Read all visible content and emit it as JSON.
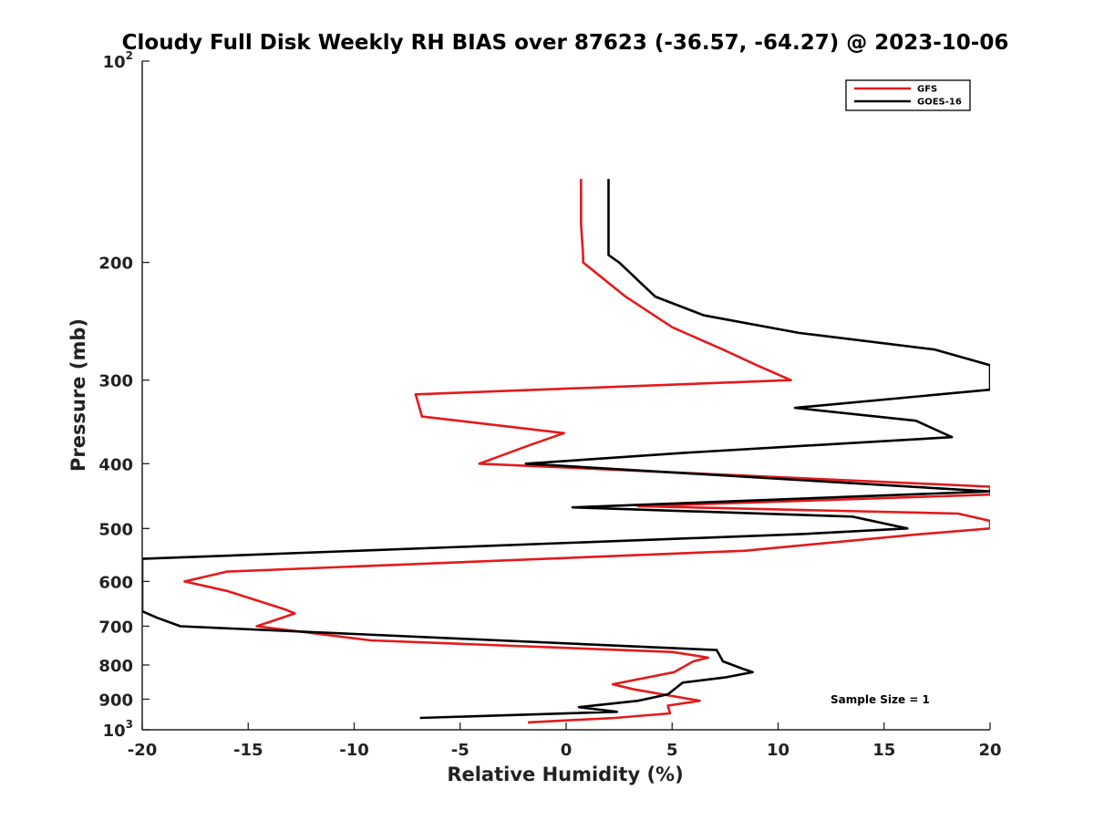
{
  "chart_data": {
    "type": "line",
    "title": "Cloudy Full Disk Weekly RH BIAS over 87623 (-36.57, -64.27) @ 2023-10-06",
    "xlabel": "Relative Humidity (%)",
    "ylabel": "Pressure (mb)",
    "xlim": [
      -20,
      20
    ],
    "ylim": [
      100,
      1000
    ],
    "y_scale": "log",
    "y_reversed": true,
    "x_ticks": [
      -20,
      -15,
      -10,
      -5,
      0,
      5,
      10,
      15,
      20
    ],
    "x_tick_labels": [
      "-20",
      "-15",
      "-10",
      "-5",
      "0",
      "5",
      "10",
      "15",
      "20"
    ],
    "y_ticks": [
      {
        "value": 100,
        "label": "10",
        "sup": "2"
      },
      {
        "value": 200,
        "label": "200",
        "sup": ""
      },
      {
        "value": 300,
        "label": "300",
        "sup": ""
      },
      {
        "value": 400,
        "label": "400",
        "sup": ""
      },
      {
        "value": 500,
        "label": "500",
        "sup": ""
      },
      {
        "value": 600,
        "label": "600",
        "sup": ""
      },
      {
        "value": 700,
        "label": "700",
        "sup": ""
      },
      {
        "value": 800,
        "label": "800",
        "sup": ""
      },
      {
        "value": 900,
        "label": "900",
        "sup": ""
      },
      {
        "value": 1000,
        "label": "10",
        "sup": "3"
      }
    ],
    "grid": false,
    "legend_position": "top-right",
    "annotation": "Sample Size = 1",
    "series": [
      {
        "name": "GFS",
        "color": "#e31a1c",
        "points": [
          [
            0.7,
            150
          ],
          [
            0.7,
            175
          ],
          [
            0.8,
            195
          ],
          [
            0.8,
            200
          ],
          [
            2.8,
            225
          ],
          [
            5.0,
            250
          ],
          [
            7.4,
            270
          ],
          [
            9.0,
            285
          ],
          [
            10.6,
            300
          ],
          [
            -7.1,
            315
          ],
          [
            -6.8,
            340
          ],
          [
            -0.1,
            360
          ],
          [
            -1.7,
            375
          ],
          [
            -4.1,
            400
          ],
          [
            20,
            433
          ],
          [
            20,
            445
          ],
          [
            3.4,
            463
          ],
          [
            18.5,
            475
          ],
          [
            20,
            487
          ],
          [
            20,
            500
          ],
          [
            16.7,
            510
          ],
          [
            8.4,
            540
          ],
          [
            -16.0,
            580
          ],
          [
            -18.0,
            600
          ],
          [
            -16.0,
            620
          ],
          [
            -13.3,
            660
          ],
          [
            -12.8,
            670
          ],
          [
            -14.0,
            690
          ],
          [
            -14.6,
            700
          ],
          [
            -9.2,
            735
          ],
          [
            5.0,
            765
          ],
          [
            6.7,
            780
          ],
          [
            6.0,
            790
          ],
          [
            5.1,
            820
          ],
          [
            2.2,
            855
          ],
          [
            3.2,
            870
          ],
          [
            6.3,
            905
          ],
          [
            4.8,
            920
          ],
          [
            4.9,
            945
          ],
          [
            2.3,
            960
          ],
          [
            -1.8,
            975
          ]
        ]
      },
      {
        "name": "GOES-16",
        "color": "#000000",
        "points": [
          [
            2.0,
            150
          ],
          [
            2.0,
            175
          ],
          [
            2.0,
            195
          ],
          [
            2.5,
            200
          ],
          [
            4.2,
            225
          ],
          [
            6.5,
            240
          ],
          [
            11.0,
            255
          ],
          [
            17.4,
            270
          ],
          [
            20,
            285
          ],
          [
            20,
            310
          ],
          [
            10.8,
            330
          ],
          [
            16.5,
            345
          ],
          [
            18.2,
            365
          ],
          [
            5.8,
            385
          ],
          [
            -1.9,
            400
          ],
          [
            20,
            440
          ],
          [
            0.3,
            465
          ],
          [
            13.5,
            480
          ],
          [
            16.1,
            500
          ],
          [
            11.0,
            510
          ],
          [
            -20,
            555
          ],
          [
            -20,
            665
          ],
          [
            -19.3,
            680
          ],
          [
            -18.2,
            700
          ],
          [
            7.1,
            760
          ],
          [
            7.4,
            790
          ],
          [
            8.3,
            810
          ],
          [
            8.8,
            820
          ],
          [
            7.5,
            835
          ],
          [
            5.5,
            850
          ],
          [
            4.8,
            885
          ],
          [
            3.4,
            905
          ],
          [
            0.6,
            925
          ],
          [
            2.4,
            940
          ],
          [
            -6.9,
            960
          ]
        ]
      }
    ]
  }
}
